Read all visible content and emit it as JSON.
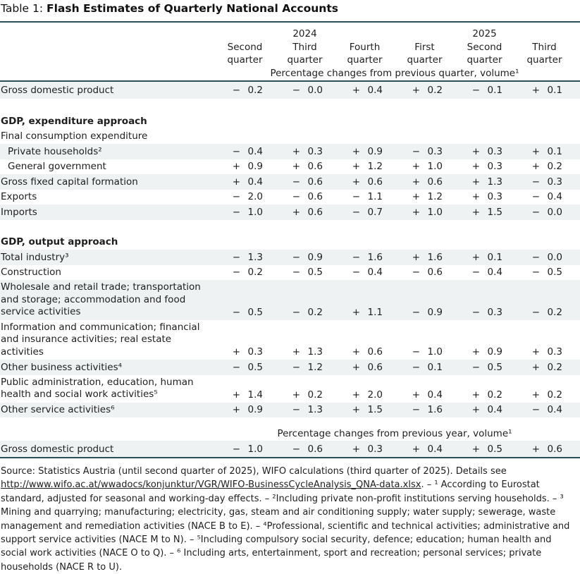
{
  "colors": {
    "rule": "#2b505a",
    "shade": "#eef2f3",
    "text": "#1e1e1e"
  },
  "title": {
    "prefix": "Table 1: ",
    "main": "Flash Estimates of Quarterly National Accounts"
  },
  "header": {
    "years": [
      {
        "label": "2024",
        "col": 1
      },
      {
        "label": "2025",
        "col": 4
      }
    ],
    "quarters": [
      "Second\nquarter",
      "Third\nquarter",
      "Fourth\nquarter",
      "First\nquarter",
      "Second\nquarter",
      "Third\nquarter"
    ],
    "spanner_quarter": "Percentage changes from previous quarter, volume¹"
  },
  "rows": [
    {
      "type": "data",
      "shaded": true,
      "label": "Gross domestic product",
      "values": [
        [
          "−",
          "0.2"
        ],
        [
          "−",
          "0.0"
        ],
        [
          "+",
          "0.4"
        ],
        [
          "+",
          "0.2"
        ],
        [
          "−",
          "0.1"
        ],
        [
          "+",
          "0.1"
        ]
      ]
    },
    {
      "type": "gap"
    },
    {
      "type": "section",
      "label": "GDP, expenditure approach"
    },
    {
      "type": "plain",
      "label": "Final consumption expenditure"
    },
    {
      "type": "data",
      "shaded": true,
      "indent": true,
      "label": "Private households²",
      "values": [
        [
          "−",
          "0.4"
        ],
        [
          "+",
          "0.3"
        ],
        [
          "+",
          "0.9"
        ],
        [
          "−",
          "0.3"
        ],
        [
          "+",
          "0.3"
        ],
        [
          "+",
          "0.1"
        ]
      ]
    },
    {
      "type": "data",
      "indent": true,
      "label": "General government",
      "values": [
        [
          "+",
          "0.9"
        ],
        [
          "+",
          "0.6"
        ],
        [
          "+",
          "1.2"
        ],
        [
          "+",
          "1.0"
        ],
        [
          "+",
          "0.3"
        ],
        [
          "+",
          "0.2"
        ]
      ]
    },
    {
      "type": "data",
      "shaded": true,
      "label": "Gross fixed capital formation",
      "values": [
        [
          "+",
          "0.4"
        ],
        [
          "−",
          "0.6"
        ],
        [
          "+",
          "0.6"
        ],
        [
          "+",
          "0.6"
        ],
        [
          "+",
          "1.3"
        ],
        [
          "−",
          "0.3"
        ]
      ]
    },
    {
      "type": "data",
      "label": "Exports",
      "values": [
        [
          "−",
          "2.0"
        ],
        [
          "−",
          "0.6"
        ],
        [
          "−",
          "1.1"
        ],
        [
          "+",
          "1.2"
        ],
        [
          "+",
          "0.3"
        ],
        [
          "−",
          "0.4"
        ]
      ]
    },
    {
      "type": "data",
      "shaded": true,
      "label": "Imports",
      "values": [
        [
          "−",
          "1.0"
        ],
        [
          "+",
          "0.6"
        ],
        [
          "−",
          "0.7"
        ],
        [
          "+",
          "1.0"
        ],
        [
          "+",
          "1.5"
        ],
        [
          "−",
          "0.0"
        ]
      ]
    },
    {
      "type": "gap"
    },
    {
      "type": "section",
      "label": "GDP, output approach"
    },
    {
      "type": "data",
      "shaded": true,
      "label": "Total industry³",
      "values": [
        [
          "−",
          "1.3"
        ],
        [
          "−",
          "0.9"
        ],
        [
          "−",
          "1.6"
        ],
        [
          "+",
          "1.6"
        ],
        [
          "+",
          "0.1"
        ],
        [
          "−",
          "0.0"
        ]
      ]
    },
    {
      "type": "data",
      "label": "Construction",
      "values": [
        [
          "−",
          "0.2"
        ],
        [
          "−",
          "0.5"
        ],
        [
          "−",
          "0.4"
        ],
        [
          "−",
          "0.6"
        ],
        [
          "−",
          "0.4"
        ],
        [
          "−",
          "0.5"
        ]
      ]
    },
    {
      "type": "data",
      "shaded": true,
      "label": "Wholesale and retail trade; transportation\nand storage; accommodation and food\nservice activities",
      "values": [
        [
          "−",
          "0.5"
        ],
        [
          "−",
          "0.2"
        ],
        [
          "+",
          "1.1"
        ],
        [
          "−",
          "0.9"
        ],
        [
          "−",
          "0.3"
        ],
        [
          "−",
          "0.2"
        ]
      ]
    },
    {
      "type": "data",
      "label": "Information and communication; financial\nand insurance activities; real estate\nactivities",
      "values": [
        [
          "+",
          "0.3"
        ],
        [
          "+",
          "1.3"
        ],
        [
          "+",
          "0.6"
        ],
        [
          "−",
          "1.0"
        ],
        [
          "+",
          "0.9"
        ],
        [
          "+",
          "0.3"
        ]
      ]
    },
    {
      "type": "data",
      "shaded": true,
      "label": "Other business activities⁴",
      "values": [
        [
          "−",
          "0.5"
        ],
        [
          "−",
          "1.2"
        ],
        [
          "+",
          "0.6"
        ],
        [
          "−",
          "0.1"
        ],
        [
          "−",
          "0.5"
        ],
        [
          "+",
          "0.2"
        ]
      ]
    },
    {
      "type": "data",
      "label": "Public administration, education, human\nhealth and social work activities⁵",
      "values": [
        [
          "+",
          "1.4"
        ],
        [
          "+",
          "0.2"
        ],
        [
          "+",
          "2.0"
        ],
        [
          "+",
          "0.4"
        ],
        [
          "+",
          "0.2"
        ],
        [
          "+",
          "0.2"
        ]
      ]
    },
    {
      "type": "data",
      "shaded": true,
      "label": "Other service activities⁶",
      "values": [
        [
          "+",
          "0.9"
        ],
        [
          "−",
          "1.3"
        ],
        [
          "+",
          "1.5"
        ],
        [
          "−",
          "1.6"
        ],
        [
          "+",
          "0.4"
        ],
        [
          "−",
          "0.4"
        ]
      ]
    },
    {
      "type": "gap-small"
    },
    {
      "type": "spanner",
      "label": "Percentage changes from previous year, volume¹"
    },
    {
      "type": "data",
      "shaded": true,
      "label": "Gross domestic product",
      "values": [
        [
          "−",
          "1.0"
        ],
        [
          "−",
          "0.6"
        ],
        [
          "+",
          "0.3"
        ],
        [
          "+",
          "0.4"
        ],
        [
          "+",
          "0.5"
        ],
        [
          "+",
          "0.6"
        ]
      ]
    }
  ],
  "footnote": {
    "segments": [
      {
        "text": "Source: Statistics Austria (until second quarter of 2025), WIFO calculations (third quarter of 2025). Details see "
      },
      {
        "text": "http://www.wifo.ac.at/wwadocs/konjunktur/VGR/WIFO-BusinessCycleAnalysis_QNA-data.xlsx",
        "link": true
      },
      {
        "text": ". – ¹ According to Eurostat standard, adjusted for seasonal and working-day effects. – ²Including private non-profit institutions serving households. – ³ Mining and quarrying; manufacturing; electricity, gas, steam and air conditioning supply; water supply; sewerage, waste management and remediation activities (NACE B to E). – ⁴Professional, scientific and technical activities; administrative and support service activities (NACE M to N). – ⁵Including compulsory social security, defence; education; human health and social work activities (NACE O to Q). – ⁶ Including arts, entertainment, sport and recreation; personal services; private households (NACE R to U)."
      }
    ]
  }
}
